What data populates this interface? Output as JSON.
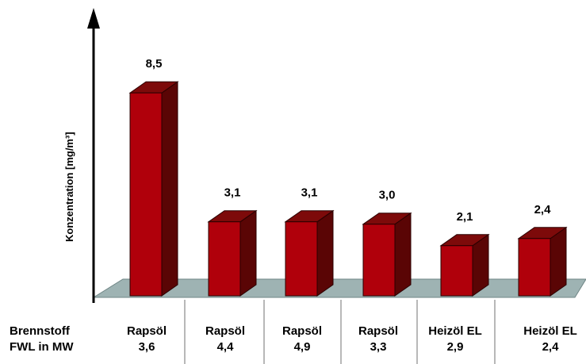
{
  "chart_data": {
    "type": "bar",
    "ylabel": "Konzentration [mg/m³]",
    "row_labels": [
      "Brennstoff",
      "FWL in MW"
    ],
    "categories": [
      {
        "fuel": "Rapsöl",
        "fwl": "3,6"
      },
      {
        "fuel": "Rapsöl",
        "fwl": "4,4"
      },
      {
        "fuel": "Rapsöl",
        "fwl": "4,9"
      },
      {
        "fuel": "Rapsöl",
        "fwl": "3,3"
      },
      {
        "fuel": "Heizöl EL",
        "fwl": "2,9"
      },
      {
        "fuel": "Heizöl EL",
        "fwl": "2,4"
      }
    ],
    "values": [
      8.5,
      3.1,
      3.1,
      3.0,
      2.1,
      2.4
    ],
    "value_labels": [
      "8,5",
      "3,1",
      "3,1",
      "3,0",
      "2,1",
      "2,4"
    ],
    "grid": false,
    "legend": "none",
    "colors": {
      "bar_front": "#b0000b",
      "bar_top": "#7d0a0a",
      "bar_side": "#5a0505",
      "floor": "#9eb3b3",
      "axis": "#000000",
      "separator": "#a0a0a0"
    }
  }
}
